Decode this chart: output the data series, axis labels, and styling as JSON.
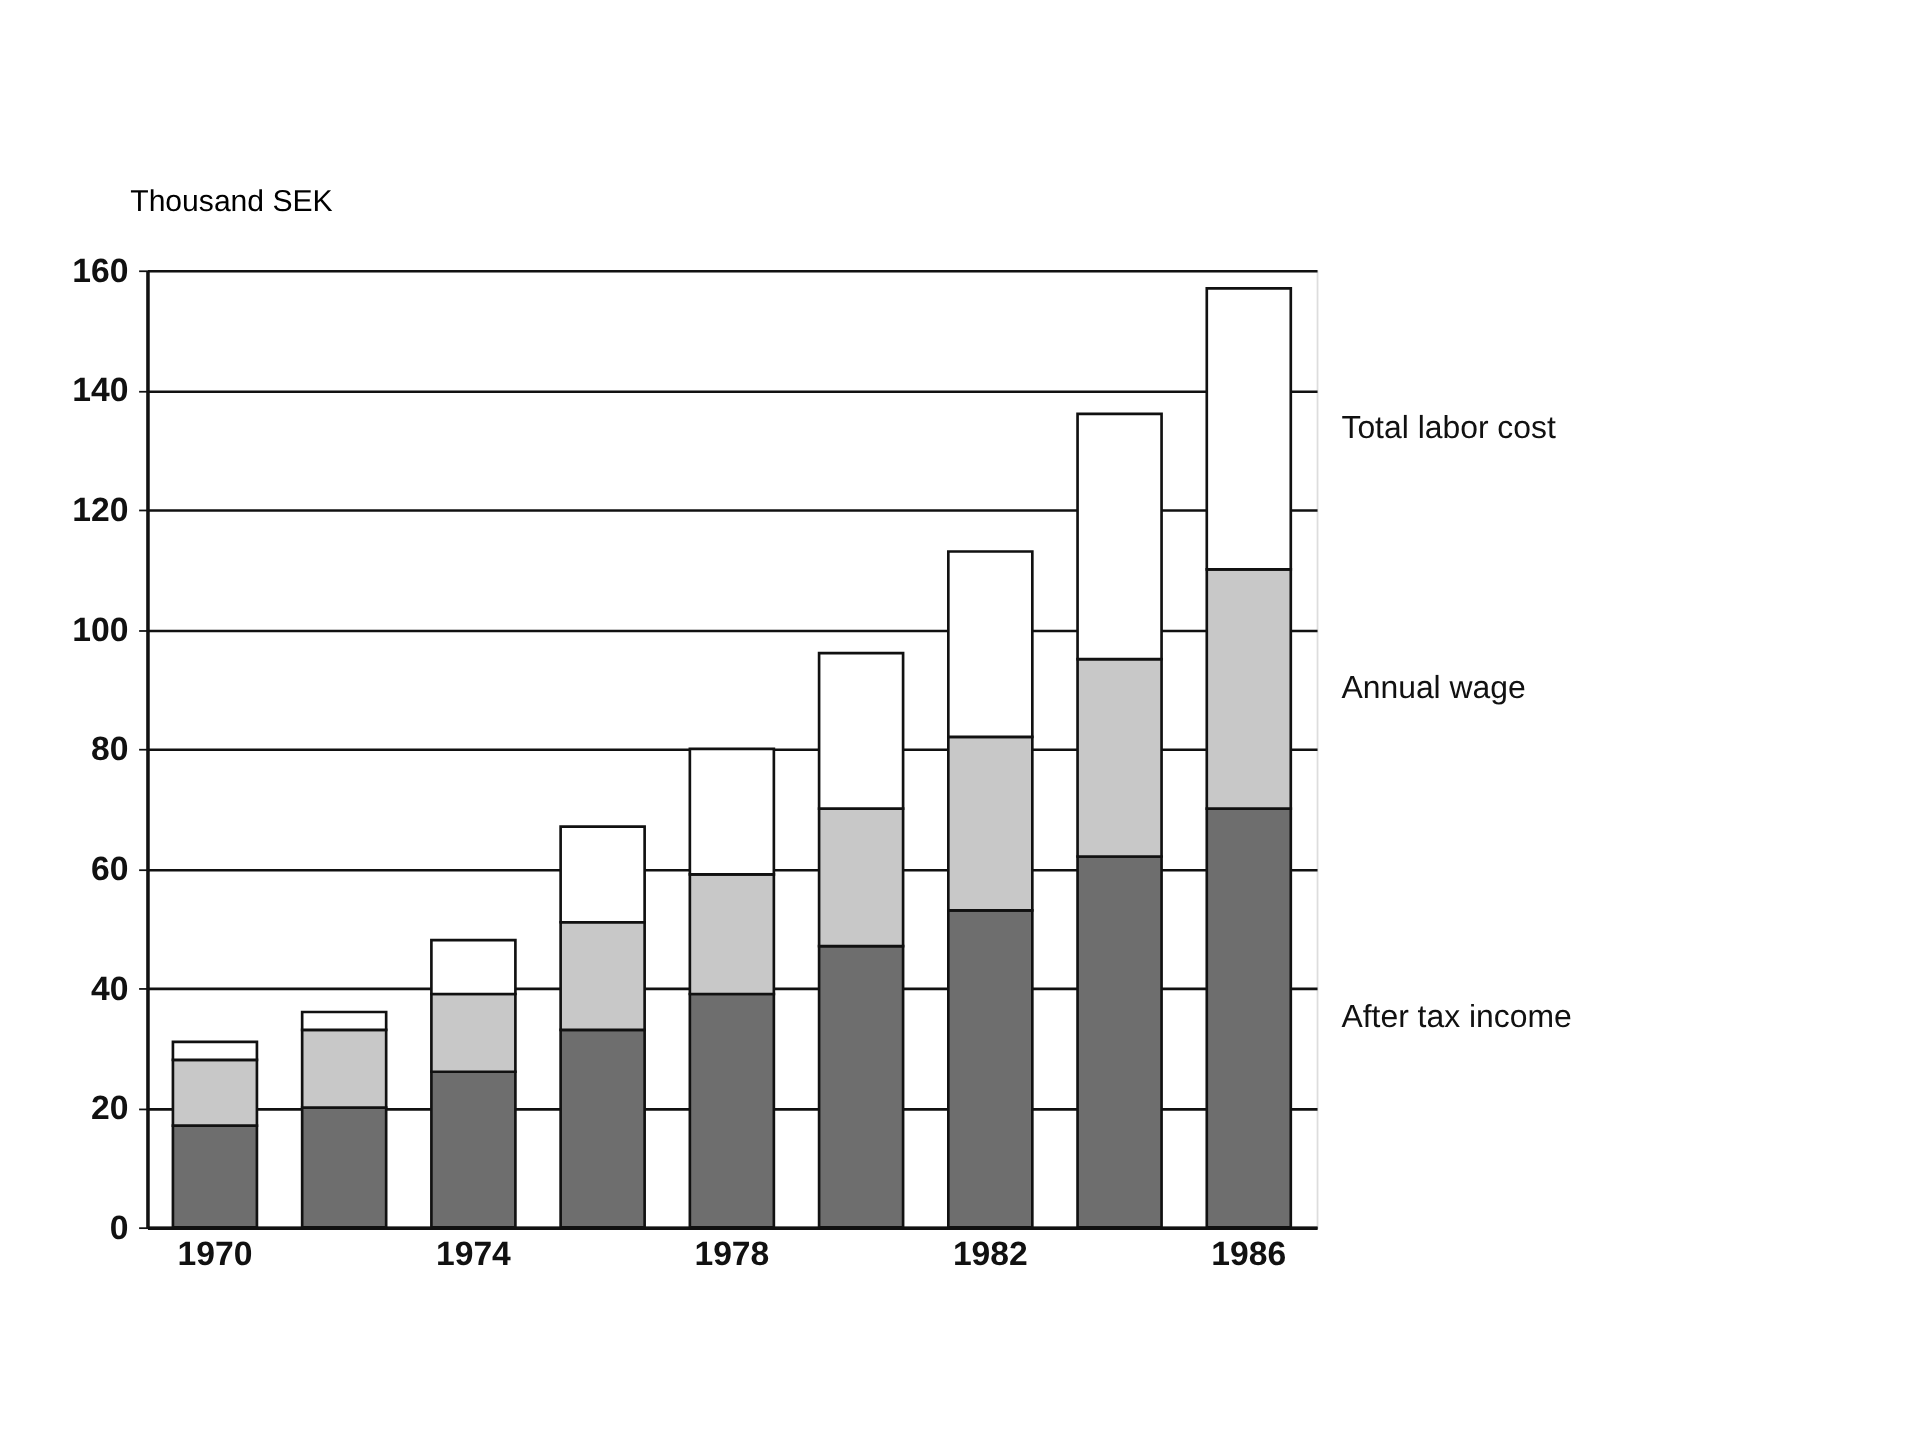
{
  "chart_data": {
    "type": "bar",
    "stacked": true,
    "ylabel": "Thousand SEK",
    "categories": [
      "1970",
      null,
      "1974",
      null,
      "1978",
      null,
      "1982",
      null,
      "1986"
    ],
    "series": [
      {
        "name": "After tax income",
        "color": "#6e6e6e",
        "values": [
          17,
          20,
          26,
          33,
          39,
          47,
          53,
          62,
          70
        ]
      },
      {
        "name": "Annual wage",
        "color": "#c8c8c8",
        "values": [
          11,
          13,
          13,
          18,
          20,
          23,
          29,
          33,
          40
        ]
      },
      {
        "name": "Total labor cost",
        "color": "#ffffff",
        "values": [
          3,
          3,
          9,
          16,
          21,
          26,
          31,
          41,
          47
        ]
      }
    ],
    "ylim": [
      0,
      160
    ],
    "yticks": [
      0,
      20,
      40,
      60,
      80,
      100,
      120,
      140,
      160
    ],
    "grid": "y"
  }
}
